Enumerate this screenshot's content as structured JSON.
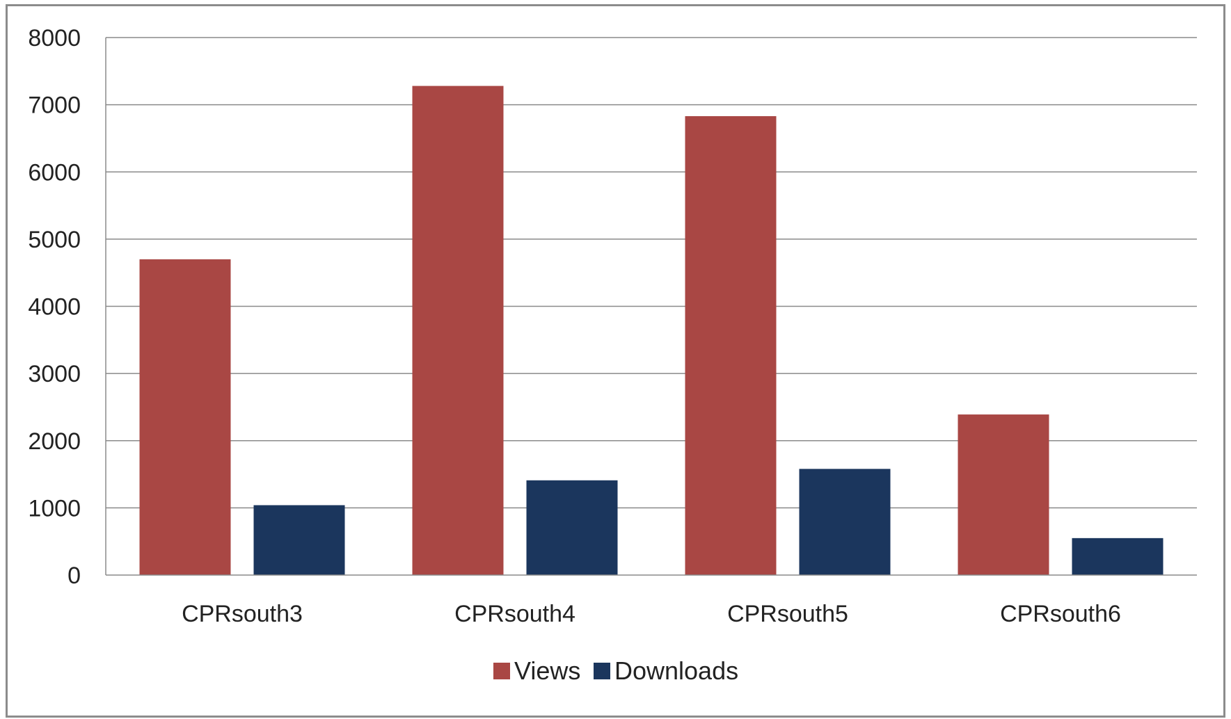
{
  "chart_data": {
    "type": "bar",
    "categories": [
      "CPRsouth3",
      "CPRsouth4",
      "CPRsouth5",
      "CPRsouth6"
    ],
    "series": [
      {
        "name": "Views",
        "values": [
          4700,
          7280,
          6830,
          2390
        ],
        "color": "#a94744"
      },
      {
        "name": "Downloads",
        "values": [
          1040,
          1410,
          1580,
          550
        ],
        "color": "#1b365d"
      }
    ],
    "yticks": [
      "0",
      "1000",
      "2000",
      "3000",
      "4000",
      "5000",
      "6000",
      "7000",
      "8000"
    ],
    "ylim": [
      0,
      8000
    ],
    "grid": true,
    "legend_position": "bottom",
    "title": "",
    "xlabel": "",
    "ylabel": ""
  }
}
